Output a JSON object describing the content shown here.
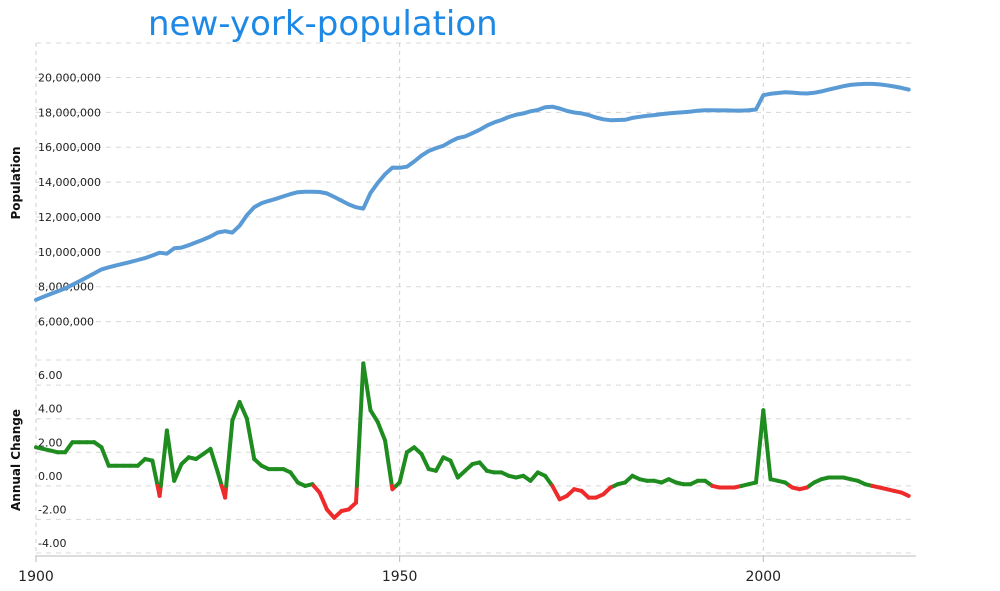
{
  "page": {
    "title": "new-york-population"
  },
  "chart_data": [
    {
      "type": "line",
      "ylabel": "Population",
      "ylim": [
        5000000,
        21000000
      ],
      "yticks": [
        {
          "v": 6000000,
          "label": "6,000,000"
        },
        {
          "v": 8000000,
          "label": "8,000,000"
        },
        {
          "v": 10000000,
          "label": "10,000,000"
        },
        {
          "v": 12000000,
          "label": "12,000,000"
        },
        {
          "v": 14000000,
          "label": "14,000,000"
        },
        {
          "v": 16000000,
          "label": "16,000,000"
        },
        {
          "v": 18000000,
          "label": "18,000,000"
        },
        {
          "v": 20000000,
          "label": "20,000,000"
        }
      ],
      "xlim": [
        1900,
        2021
      ],
      "grid": true,
      "color": "#5b9bd5",
      "x": [
        1900,
        1901,
        1902,
        1903,
        1904,
        1905,
        1906,
        1907,
        1908,
        1909,
        1910,
        1911,
        1912,
        1913,
        1914,
        1915,
        1916,
        1917,
        1918,
        1919,
        1920,
        1921,
        1922,
        1923,
        1924,
        1925,
        1926,
        1927,
        1928,
        1929,
        1930,
        1931,
        1932,
        1933,
        1934,
        1935,
        1936,
        1937,
        1938,
        1939,
        1940,
        1941,
        1942,
        1943,
        1944,
        1945,
        1946,
        1947,
        1948,
        1949,
        1950,
        1951,
        1952,
        1953,
        1954,
        1955,
        1956,
        1957,
        1958,
        1959,
        1960,
        1961,
        1962,
        1963,
        1964,
        1965,
        1966,
        1967,
        1968,
        1969,
        1970,
        1971,
        1972,
        1973,
        1974,
        1975,
        1976,
        1977,
        1978,
        1979,
        1980,
        1981,
        1982,
        1983,
        1984,
        1985,
        1986,
        1987,
        1988,
        1989,
        1990,
        1991,
        1992,
        1993,
        1994,
        1995,
        1996,
        1997,
        1998,
        1999,
        2000,
        2001,
        2002,
        2003,
        2004,
        2005,
        2006,
        2007,
        2008,
        2009,
        2010,
        2011,
        2012,
        2013,
        2014,
        2015,
        2016,
        2017,
        2018,
        2019,
        2020
      ],
      "y": [
        7250000,
        7420000,
        7580000,
        7740000,
        7900000,
        8110000,
        8320000,
        8540000,
        8760000,
        8990000,
        9110000,
        9220000,
        9320000,
        9420000,
        9530000,
        9640000,
        9790000,
        9950000,
        9890000,
        10200000,
        10240000,
        10380000,
        10540000,
        10700000,
        10880000,
        11110000,
        11180000,
        11100000,
        11500000,
        12100000,
        12560000,
        12790000,
        12920000,
        13040000,
        13180000,
        13310000,
        13420000,
        13440000,
        13450000,
        13430000,
        13350000,
        13150000,
        12930000,
        12720000,
        12560000,
        12480000,
        13380000,
        13960000,
        14450000,
        14830000,
        14820000,
        14880000,
        15180000,
        15520000,
        15780000,
        15950000,
        16080000,
        16320000,
        16520000,
        16620000,
        16800000,
        17000000,
        17240000,
        17420000,
        17560000,
        17730000,
        17860000,
        17940000,
        18060000,
        18130000,
        18290000,
        18320000,
        18220000,
        18080000,
        17990000,
        17940000,
        17840000,
        17700000,
        17600000,
        17550000,
        17560000,
        17570000,
        17680000,
        17740000,
        17800000,
        17840000,
        17900000,
        17940000,
        17970000,
        18000000,
        18040000,
        18090000,
        18120000,
        18120000,
        18110000,
        18110000,
        18100000,
        18100000,
        18120000,
        18160000,
        18980000,
        19060000,
        19110000,
        19150000,
        19130000,
        19090000,
        19080000,
        19120000,
        19200000,
        19300000,
        19400000,
        19500000,
        19570000,
        19610000,
        19630000,
        19630000,
        19600000,
        19550000,
        19480000,
        19400000,
        19300000
      ]
    },
    {
      "type": "line",
      "ylabel": "Annual Change",
      "ylim": [
        -4.0,
        7.5
      ],
      "yticks": [
        {
          "v": -4,
          "label": "-4.00"
        },
        {
          "v": -2,
          "label": "-2.00"
        },
        {
          "v": 0,
          "label": "0.00"
        },
        {
          "v": 2,
          "label": "2.00"
        },
        {
          "v": 4,
          "label": "4.00"
        },
        {
          "v": 6,
          "label": "6.00"
        }
      ],
      "xlim": [
        1900,
        2021
      ],
      "positive_color": "#1f8c1f",
      "negative_color": "#ee2b2b",
      "x": [
        1900,
        1901,
        1902,
        1903,
        1904,
        1905,
        1906,
        1907,
        1908,
        1909,
        1910,
        1911,
        1912,
        1913,
        1914,
        1915,
        1916,
        1917,
        1918,
        1919,
        1920,
        1921,
        1922,
        1923,
        1924,
        1925,
        1926,
        1927,
        1928,
        1929,
        1930,
        1931,
        1932,
        1933,
        1934,
        1935,
        1936,
        1937,
        1938,
        1939,
        1940,
        1941,
        1942,
        1943,
        1944,
        1945,
        1946,
        1947,
        1948,
        1949,
        1950,
        1951,
        1952,
        1953,
        1954,
        1955,
        1956,
        1957,
        1958,
        1959,
        1960,
        1961,
        1962,
        1963,
        1964,
        1965,
        1966,
        1967,
        1968,
        1969,
        1970,
        1971,
        1972,
        1973,
        1974,
        1975,
        1976,
        1977,
        1978,
        1979,
        1980,
        1981,
        1982,
        1983,
        1984,
        1985,
        1986,
        1987,
        1988,
        1989,
        1990,
        1991,
        1992,
        1993,
        1994,
        1995,
        1996,
        1997,
        1998,
        1999,
        2000,
        2001,
        2002,
        2003,
        2004,
        2005,
        2006,
        2007,
        2008,
        2009,
        2010,
        2011,
        2012,
        2013,
        2014,
        2015,
        2016,
        2017,
        2018,
        2019,
        2020
      ],
      "y": [
        2.3,
        2.2,
        2.1,
        2.0,
        2.0,
        2.6,
        2.6,
        2.6,
        2.6,
        2.3,
        1.2,
        1.2,
        1.2,
        1.2,
        1.2,
        1.6,
        1.5,
        -0.6,
        3.3,
        0.3,
        1.3,
        1.7,
        1.6,
        1.9,
        2.2,
        0.8,
        -0.7,
        3.9,
        5.0,
        4.0,
        1.6,
        1.2,
        1.0,
        1.0,
        1.0,
        0.8,
        0.2,
        0.0,
        0.1,
        -0.4,
        -1.4,
        -1.9,
        -1.5,
        -1.4,
        -1.0,
        7.3,
        4.5,
        3.8,
        2.7,
        -0.2,
        0.2,
        2.0,
        2.3,
        1.9,
        1.0,
        0.9,
        1.7,
        1.5,
        0.5,
        0.9,
        1.3,
        1.4,
        0.9,
        0.8,
        0.8,
        0.6,
        0.5,
        0.6,
        0.3,
        0.8,
        0.6,
        0.0,
        -0.8,
        -0.6,
        -0.2,
        -0.3,
        -0.7,
        -0.7,
        -0.5,
        -0.1,
        0.1,
        0.2,
        0.6,
        0.4,
        0.3,
        0.3,
        0.2,
        0.4,
        0.2,
        0.1,
        0.1,
        0.3,
        0.3,
        0.0,
        -0.1,
        -0.1,
        -0.1,
        0.0,
        0.1,
        0.2,
        4.5,
        0.4,
        0.3,
        0.2,
        -0.1,
        -0.2,
        -0.1,
        0.2,
        0.4,
        0.5,
        0.5,
        0.5,
        0.4,
        0.3,
        0.1,
        0.0,
        -0.1,
        -0.2,
        -0.3,
        -0.4,
        -0.6
      ]
    }
  ],
  "x_axis": {
    "ticks": [
      {
        "v": 1900,
        "label": "1900"
      },
      {
        "v": 1950,
        "label": "1950"
      },
      {
        "v": 2000,
        "label": "2000"
      }
    ]
  }
}
